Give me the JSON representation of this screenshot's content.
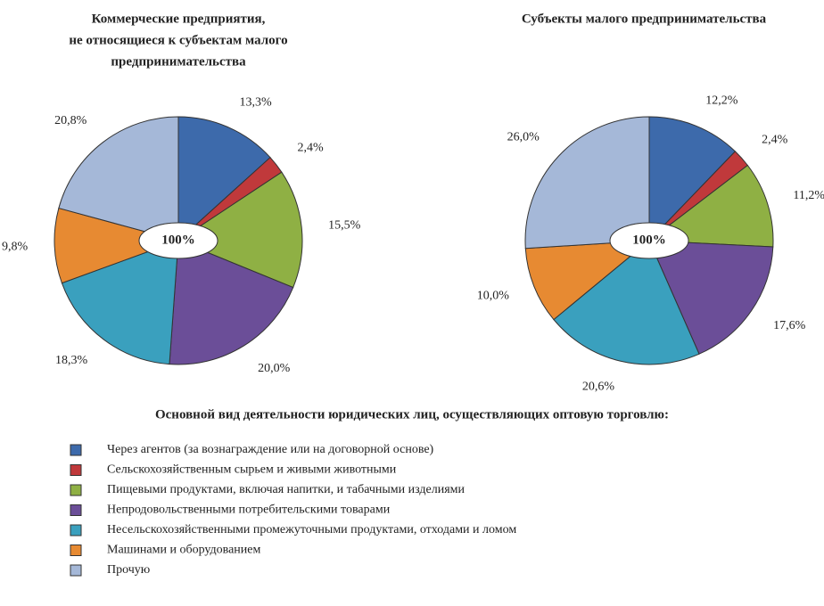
{
  "chart_data": [
    {
      "type": "pie",
      "title": [
        "Коммерческие предприятия,",
        "не относящиеся к субъектам малого",
        "предпринимательства"
      ],
      "center_label": "100%",
      "values": [
        13.3,
        2.4,
        15.5,
        20.0,
        18.3,
        9.8,
        20.8
      ],
      "value_labels": [
        "13,3%",
        "2,4%",
        "15,5%",
        "20,0%",
        "18,3%",
        "9,8%",
        "20,8%"
      ]
    },
    {
      "type": "pie",
      "title": [
        "Субъекты малого предпринимательства"
      ],
      "center_label": "100%",
      "values": [
        12.2,
        2.4,
        11.2,
        17.6,
        20.6,
        10.0,
        26.0
      ],
      "value_labels": [
        "12,2%",
        "2,4%",
        "11,2%",
        "17,6%",
        "20,6%",
        "10,0%",
        "26,0%"
      ]
    }
  ],
  "legend": {
    "title": "Основной вид деятельности юридических лиц, осуществляющих оптовую торговлю:",
    "items": [
      {
        "name": "Через агентов (за вознаграждение или на договорной основе)",
        "color": "#3d6aab"
      },
      {
        "name": "Сельскохозяйственным сырьем и живыми животными",
        "color": "#c0393b"
      },
      {
        "name": "Пищевыми продуктами,  включая напитки, и табачными изделиями",
        "color": "#8fb044"
      },
      {
        "name": "Непродовольственными потребительскими товарами",
        "color": "#6b4e98"
      },
      {
        "name": "Несельскохозяйственными  промежуточными продуктами, отходами и ломом",
        "color": "#3aa0be"
      },
      {
        "name": "Машинами и оборудованием",
        "color": "#e78a32"
      },
      {
        "name": "Прочую",
        "color": "#a5b8d8"
      }
    ]
  }
}
